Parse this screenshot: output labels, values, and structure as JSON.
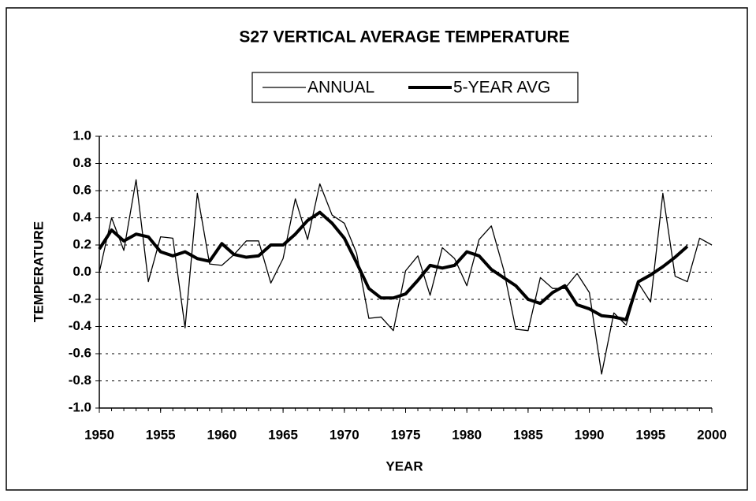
{
  "chart_data": {
    "type": "line",
    "title": "S27 VERTICAL AVERAGE TEMPERATURE",
    "xlabel": "YEAR",
    "ylabel": "TEMPERATURE",
    "x": [
      1950,
      1951,
      1952,
      1953,
      1954,
      1955,
      1956,
      1957,
      1958,
      1959,
      1960,
      1961,
      1962,
      1963,
      1964,
      1965,
      1966,
      1967,
      1968,
      1969,
      1970,
      1971,
      1972,
      1973,
      1974,
      1975,
      1976,
      1977,
      1978,
      1979,
      1980,
      1981,
      1982,
      1983,
      1984,
      1985,
      1986,
      1987,
      1988,
      1989,
      1990,
      1991,
      1992,
      1993,
      1994,
      1995,
      1996,
      1997,
      1998,
      1999,
      2000
    ],
    "series": [
      {
        "name": "ANNUAL",
        "color": "#000000",
        "linewidth": 1.3,
        "values": [
          0.0,
          0.4,
          0.16,
          0.68,
          -0.07,
          0.26,
          0.25,
          -0.41,
          0.58,
          0.06,
          0.05,
          0.13,
          0.23,
          0.23,
          -0.08,
          0.1,
          0.54,
          0.24,
          0.65,
          0.42,
          0.36,
          0.14,
          -0.34,
          -0.33,
          -0.43,
          0.01,
          0.12,
          -0.17,
          0.18,
          0.1,
          -0.1,
          0.24,
          0.34,
          0.02,
          -0.42,
          -0.43,
          -0.04,
          -0.12,
          -0.12,
          -0.01,
          -0.15,
          -0.75,
          -0.3,
          -0.39,
          -0.08,
          -0.22,
          0.58,
          -0.03,
          -0.07,
          0.25,
          0.2
        ]
      },
      {
        "name": "5-YEAR AVG",
        "color": "#000000",
        "linewidth": 4,
        "values": [
          0.17,
          0.31,
          0.23,
          0.28,
          0.26,
          0.15,
          0.12,
          0.15,
          0.1,
          0.08,
          0.21,
          0.13,
          0.11,
          0.12,
          0.2,
          0.2,
          0.28,
          0.38,
          0.44,
          0.36,
          0.25,
          0.07,
          -0.12,
          -0.19,
          -0.19,
          -0.16,
          -0.06,
          0.05,
          0.03,
          0.05,
          0.15,
          0.12,
          0.02,
          -0.04,
          -0.1,
          -0.2,
          -0.23,
          -0.15,
          -0.1,
          -0.24,
          -0.27,
          -0.32,
          -0.33,
          -0.35,
          -0.07,
          -0.02,
          0.04,
          0.11,
          0.19,
          null,
          null
        ]
      }
    ],
    "xlim": [
      1950,
      2000
    ],
    "xticks": [
      1950,
      1955,
      1960,
      1965,
      1970,
      1975,
      1980,
      1985,
      1990,
      1995,
      2000
    ],
    "ylim": [
      -1,
      1
    ],
    "yticks": [
      {
        "value": 1,
        "label": "1.0"
      },
      0.8,
      0.6,
      0.4,
      0.2,
      {
        "value": 0,
        "label": "0.0"
      },
      -0.2,
      -0.4,
      -0.6,
      -0.8,
      {
        "value": -1,
        "label": "-1.0"
      }
    ],
    "grid": true,
    "legend": "top"
  }
}
